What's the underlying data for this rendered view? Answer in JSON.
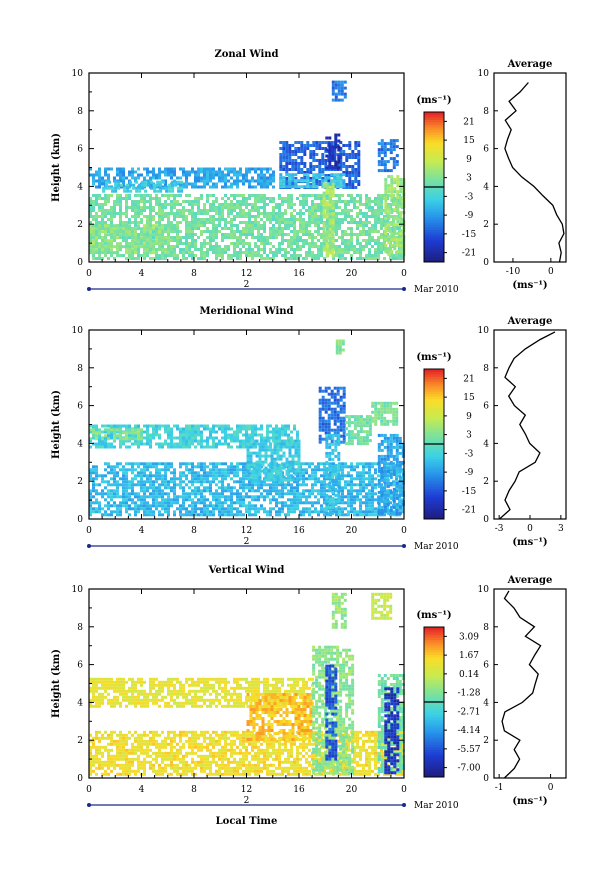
{
  "chart_data": [
    {
      "type": "heatmap",
      "title": "Zonal Wind",
      "ylabel": "Height (km)",
      "ylim": [
        0,
        10
      ],
      "xlim": [
        0,
        24
      ],
      "xticks": [
        "0",
        "4",
        "8",
        "12",
        "16",
        "20",
        "0"
      ],
      "yticks": [
        "0",
        "2",
        "4",
        "6",
        "8",
        "10"
      ],
      "date_marker": "2",
      "month_label": "Mar 2010",
      "colorbar": {
        "unit": "(ms⁻¹)",
        "ticks": [
          "21",
          "15",
          "9",
          "3",
          "-3",
          "-9",
          "-15",
          "-21"
        ],
        "range": [
          -24,
          24
        ]
      },
      "fields": [
        {
          "x": [
            0,
            14
          ],
          "y": [
            3.9,
            5.0
          ],
          "value": -8
        },
        {
          "x": [
            1,
            7
          ],
          "y": [
            3.8,
            4.3
          ],
          "value": -4
        },
        {
          "x": [
            0,
            24
          ],
          "y": [
            0.2,
            3.6
          ],
          "value": 2
        },
        {
          "x": [
            0,
            6
          ],
          "y": [
            0.5,
            2.0
          ],
          "value": 4
        },
        {
          "x": [
            14.5,
            20.5
          ],
          "y": [
            3.9,
            6.4
          ],
          "value": -14
        },
        {
          "x": [
            18,
            19
          ],
          "y": [
            5.0,
            6.8
          ],
          "value": -20
        },
        {
          "x": [
            22,
            23.5
          ],
          "y": [
            4.8,
            6.5
          ],
          "value": -12
        },
        {
          "x": [
            14.5,
            19.5
          ],
          "y": [
            4.0,
            4.7
          ],
          "value": -5
        },
        {
          "x": [
            18.5,
            19.5
          ],
          "y": [
            8.6,
            9.6
          ],
          "value": -12
        },
        {
          "x": [
            22.5,
            24
          ],
          "y": [
            0.4,
            4.6
          ],
          "value": 5
        },
        {
          "x": [
            17.8,
            18.6
          ],
          "y": [
            0.3,
            4.2
          ],
          "value": 6
        }
      ],
      "average": {
        "xlabel": "(ms⁻¹)",
        "title": "Average",
        "xticks": [
          "-10",
          "0"
        ],
        "xlim": [
          -15,
          4
        ],
        "profile": {
          "height": [
            0,
            0.5,
            1,
            1.5,
            2,
            2.5,
            3,
            3.5,
            4,
            4.5,
            5,
            5.5,
            6,
            6.5,
            7,
            7.5,
            8,
            8.5,
            9,
            9.5
          ],
          "value": [
            2.5,
            2.8,
            2.0,
            3.5,
            3.0,
            1.5,
            0.5,
            -2.0,
            -4.5,
            -7.5,
            -10.0,
            -11.0,
            -12.0,
            -11.5,
            -10.5,
            -12.0,
            -9.0,
            -11.0,
            -8.0,
            -6.0
          ]
        }
      }
    },
    {
      "type": "heatmap",
      "title": "Meridional Wind",
      "ylabel": "Height (km)",
      "ylim": [
        0,
        10
      ],
      "xlim": [
        0,
        24
      ],
      "xticks": [
        "0",
        "4",
        "8",
        "12",
        "16",
        "20",
        "0"
      ],
      "yticks": [
        "0",
        "2",
        "4",
        "6",
        "8",
        "10"
      ],
      "date_marker": "2",
      "month_label": "Mar 2010",
      "colorbar": {
        "unit": "(ms⁻¹)",
        "ticks": [
          "21",
          "15",
          "9",
          "3",
          "-3",
          "-9",
          "-15",
          "-21"
        ],
        "range": [
          -24,
          24
        ]
      },
      "fields": [
        {
          "x": [
            0,
            24
          ],
          "y": [
            0.2,
            3.0
          ],
          "value": -6
        },
        {
          "x": [
            0,
            16
          ],
          "y": [
            3.8,
            5.0
          ],
          "value": -3
        },
        {
          "x": [
            0,
            4
          ],
          "y": [
            4.3,
            4.8
          ],
          "value": 3
        },
        {
          "x": [
            12,
            16
          ],
          "y": [
            2.0,
            4.2
          ],
          "value": -4
        },
        {
          "x": [
            17.5,
            19.5
          ],
          "y": [
            4.0,
            7.0
          ],
          "value": -13
        },
        {
          "x": [
            18,
            19
          ],
          "y": [
            0.3,
            4.5
          ],
          "value": -5
        },
        {
          "x": [
            22,
            24
          ],
          "y": [
            0.3,
            4.5
          ],
          "value": -8
        },
        {
          "x": [
            19.5,
            21.5
          ],
          "y": [
            4.0,
            5.5
          ],
          "value": 2
        },
        {
          "x": [
            21.5,
            23.5
          ],
          "y": [
            5.0,
            6.2
          ],
          "value": 2
        },
        {
          "x": [
            18.8,
            19.4
          ],
          "y": [
            8.8,
            9.5
          ],
          "value": 3
        }
      ],
      "average": {
        "xlabel": "(ms⁻¹)",
        "title": "Average",
        "xticks": [
          "-3",
          "0",
          "3"
        ],
        "xlim": [
          -3.5,
          3.5
        ],
        "profile": {
          "height": [
            0,
            0.5,
            1,
            1.5,
            2,
            2.5,
            3,
            3.5,
            4,
            4.5,
            5,
            5.5,
            6,
            6.5,
            7,
            7.5,
            8,
            8.5,
            9,
            9.5,
            9.9
          ],
          "value": [
            -3.0,
            -2.0,
            -2.5,
            -2.0,
            -1.5,
            -1.0,
            0.5,
            1.0,
            0.0,
            -0.5,
            -1.0,
            -0.5,
            -1.5,
            -2.0,
            -1.5,
            -2.5,
            -2.0,
            -1.5,
            -0.5,
            1.0,
            2.5
          ]
        }
      }
    },
    {
      "type": "heatmap",
      "title": "Vertical Wind",
      "xlabel": "Local Time",
      "ylabel": "Height (km)",
      "ylim": [
        0,
        10
      ],
      "xlim": [
        0,
        24
      ],
      "xticks": [
        "0",
        "4",
        "8",
        "12",
        "16",
        "20",
        "0"
      ],
      "yticks": [
        "0",
        "2",
        "4",
        "6",
        "8",
        "10"
      ],
      "date_marker": "2",
      "month_label": "Mar 2010",
      "colorbar": {
        "unit": "(ms⁻¹)",
        "ticks": [
          "3.09",
          "1.67",
          "0.14",
          "-1.28",
          "-2.71",
          "-4.14",
          "-5.57",
          "-7.00"
        ],
        "range": [
          -7.71,
          3.8
        ]
      },
      "fields": [
        {
          "x": [
            0,
            24
          ],
          "y": [
            0.2,
            2.5
          ],
          "value": 1.2
        },
        {
          "x": [
            0,
            17
          ],
          "y": [
            3.8,
            5.3
          ],
          "value": 0.9
        },
        {
          "x": [
            12,
            17
          ],
          "y": [
            2.0,
            4.5
          ],
          "value": 1.8
        },
        {
          "x": [
            17,
            20
          ],
          "y": [
            0.3,
            7.0
          ],
          "value": -1.0
        },
        {
          "x": [
            18,
            18.8
          ],
          "y": [
            1.0,
            6.0
          ],
          "value": -5.5
        },
        {
          "x": [
            22,
            24
          ],
          "y": [
            0.3,
            5.5
          ],
          "value": -1.5
        },
        {
          "x": [
            22.5,
            23.5
          ],
          "y": [
            0.3,
            4.8
          ],
          "value": -6.5
        },
        {
          "x": [
            18.5,
            19.5
          ],
          "y": [
            8.0,
            9.8
          ],
          "value": -0.8
        },
        {
          "x": [
            21.5,
            23
          ],
          "y": [
            8.5,
            9.8
          ],
          "value": 0.2
        }
      ],
      "average": {
        "xlabel": "(ms⁻¹)",
        "title": "Average",
        "xticks": [
          "-1",
          "0"
        ],
        "xlim": [
          -1.1,
          0.3
        ],
        "profile": {
          "height": [
            0,
            0.5,
            1,
            1.5,
            2,
            2.5,
            3,
            3.5,
            4,
            4.5,
            5,
            5.5,
            6,
            6.5,
            7,
            7.5,
            8,
            8.5,
            9,
            9.5,
            9.9
          ],
          "value": [
            -0.9,
            -0.7,
            -0.6,
            -0.7,
            -0.6,
            -0.9,
            -0.95,
            -0.9,
            -0.55,
            -0.35,
            -0.3,
            -0.25,
            -0.4,
            -0.3,
            -0.2,
            -0.5,
            -0.3,
            -0.6,
            -0.7,
            -0.9,
            -0.8
          ]
        }
      }
    }
  ]
}
